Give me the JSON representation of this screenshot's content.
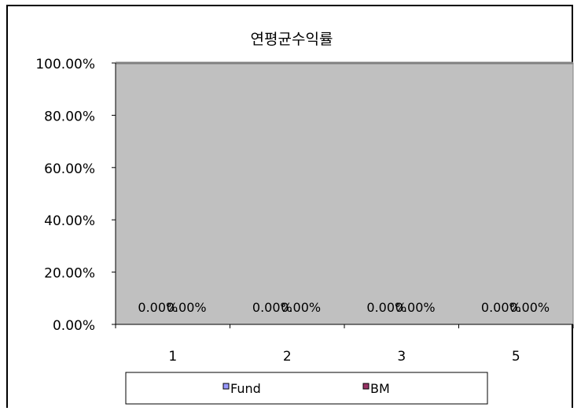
{
  "chart_data": {
    "type": "bar",
    "title": "연평균수익률",
    "categories": [
      "1",
      "2",
      "3",
      "5"
    ],
    "series": [
      {
        "name": "Fund",
        "values": [
          0,
          0,
          0,
          0
        ],
        "labels": [
          "0.00%",
          "0.00%",
          "0.00%",
          "0.00%"
        ]
      },
      {
        "name": "BM",
        "values": [
          0,
          0,
          0,
          0
        ],
        "labels": [
          "0.00%",
          "0.00%",
          "0.00%",
          "0.00%"
        ]
      }
    ],
    "y_ticks": [
      "0.00%",
      "20.00%",
      "40.00%",
      "60.00%",
      "80.00%",
      "100.00%"
    ],
    "ylim": [
      0,
      100
    ],
    "xlabel": "",
    "ylabel": "",
    "grid": false,
    "legend_position": "bottom",
    "colors": {
      "plot_background": "#c0c0c0",
      "Fund": "#9999ff",
      "BM": "#993366"
    }
  }
}
